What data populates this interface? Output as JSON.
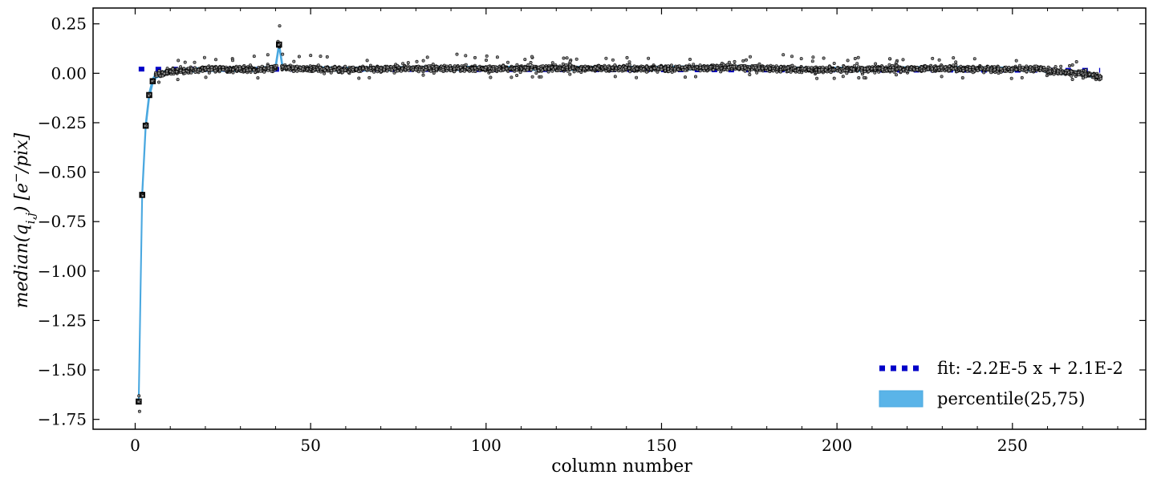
{
  "chart_data": {
    "type": "scatter",
    "title": "",
    "xlabel": "column number",
    "ylabel": "median(q_{i,j}) [e^-/pix]",
    "ylabel_parts": {
      "pre": "median(q",
      "sub": "i,j",
      "mid": ") [e",
      "sup": "−",
      "post": "/pix]"
    },
    "xlim": [
      -12,
      288
    ],
    "ylim": [
      -1.8,
      0.33
    ],
    "xticks": [
      0,
      50,
      100,
      150,
      200,
      250
    ],
    "xtick_labels": [
      "0",
      "50",
      "100",
      "150",
      "200",
      "250"
    ],
    "yticks": [
      0.25,
      0.0,
      -0.25,
      -0.5,
      -0.75,
      -1.0,
      -1.25,
      -1.5,
      -1.75
    ],
    "ytick_labels": [
      "0.25",
      "0.00",
      "−0.25",
      "−0.50",
      "−0.75",
      "−1.00",
      "−1.25",
      "−1.50",
      "−1.75"
    ],
    "grid": false,
    "legend_position": "bottom-right",
    "column_range": [
      1,
      275
    ],
    "median_profile": [
      [
        1,
        -1.66
      ],
      [
        2,
        -0.615
      ],
      [
        3,
        -0.265
      ],
      [
        4,
        -0.11
      ],
      [
        5,
        -0.04
      ],
      [
        6,
        -0.01
      ],
      [
        8,
        0.0
      ],
      [
        10,
        0.01
      ],
      [
        15,
        0.015
      ],
      [
        20,
        0.02
      ],
      [
        25,
        0.02
      ],
      [
        30,
        0.02
      ],
      [
        35,
        0.02
      ],
      [
        38,
        0.025
      ],
      [
        40,
        0.03
      ],
      [
        41,
        0.145
      ],
      [
        42,
        0.03
      ],
      [
        45,
        0.025
      ],
      [
        60,
        0.02
      ],
      [
        80,
        0.025
      ],
      [
        100,
        0.025
      ],
      [
        120,
        0.025
      ],
      [
        150,
        0.025
      ],
      [
        170,
        0.03
      ],
      [
        190,
        0.02
      ],
      [
        210,
        0.02
      ],
      [
        230,
        0.025
      ],
      [
        250,
        0.02
      ],
      [
        258,
        0.025
      ],
      [
        260,
        0.01
      ],
      [
        265,
        0.005
      ],
      [
        270,
        0.0
      ],
      [
        275,
        -0.02
      ]
    ],
    "series": [
      {
        "name": "fit: -2.2E-5 x + 2.1E-2",
        "kind": "line",
        "style": "dotted",
        "color": "#0000c8",
        "slope": -2.2e-05,
        "intercept": 0.021
      },
      {
        "name": "percentile(25,75)",
        "kind": "band",
        "color": "#5ab4e8",
        "line_color": "#4aa8e0"
      }
    ],
    "points_color": "#000000"
  }
}
